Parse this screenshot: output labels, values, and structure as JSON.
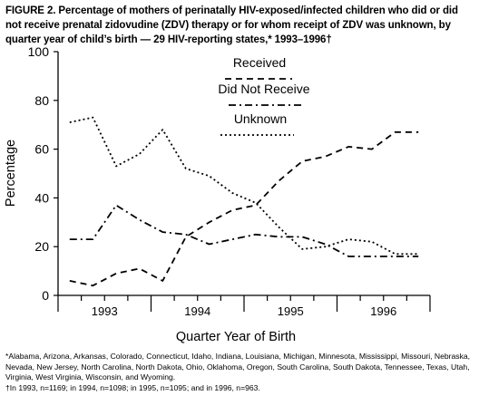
{
  "title": "FIGURE 2. Percentage of mothers of perinatally HIV-exposed/infected children who did or did not receive prenatal zidovudine (ZDV) therapy or for whom receipt of ZDV was unknown, by quarter year of child’s birth — 29 HIV-reporting states,* 1993–1996†",
  "chart_data": {
    "type": "line",
    "xlabel": "Quarter Year of Birth",
    "ylabel": "Percentage",
    "ylim": [
      0,
      100
    ],
    "yticks": [
      0,
      20,
      40,
      60,
      80,
      100
    ],
    "year_labels": [
      "1993",
      "1994",
      "1995",
      "1996"
    ],
    "x": [
      "1993 Q1",
      "1993 Q2",
      "1993 Q3",
      "1993 Q4",
      "1994 Q1",
      "1994 Q2",
      "1994 Q3",
      "1994 Q4",
      "1995 Q1",
      "1995 Q2",
      "1995 Q3",
      "1995 Q4",
      "1996 Q1",
      "1996 Q2",
      "1996 Q3",
      "1996 Q4"
    ],
    "legend_placement": "top-center",
    "grid": false,
    "series": [
      {
        "name": "Received",
        "style": "dashed",
        "values": [
          6,
          4,
          9,
          11,
          6,
          24,
          30,
          35,
          37,
          47,
          55,
          57,
          61,
          60,
          67,
          67
        ]
      },
      {
        "name": "Did Not Receive",
        "style": "dashdot",
        "values": [
          23,
          23,
          37,
          31,
          26,
          25,
          21,
          23,
          25,
          24,
          24,
          21,
          16,
          16,
          16,
          16
        ]
      },
      {
        "name": "Unknown",
        "style": "dotted",
        "values": [
          71,
          73,
          53,
          58,
          68,
          52,
          49,
          42,
          38,
          28,
          19,
          20,
          23,
          22,
          17,
          17
        ]
      }
    ]
  },
  "footnotes": {
    "states": "*Alabama, Arizona, Arkansas, Colorado, Connecticut, Idaho, Indiana, Louisiana, Michigan, Minnesota, Mississippi, Missouri, Nebraska, Nevada, New Jersey, North Carolina, North Dakota, Ohio, Oklahoma, Oregon, South Carolina, South Dakota, Tennessee, Texas, Utah, Virginia, West Virginia, Wisconsin, and Wyoming.",
    "counts": "†In 1993, n=1169; in 1994, n=1098; in 1995, n=1095; and in 1996, n=963."
  }
}
